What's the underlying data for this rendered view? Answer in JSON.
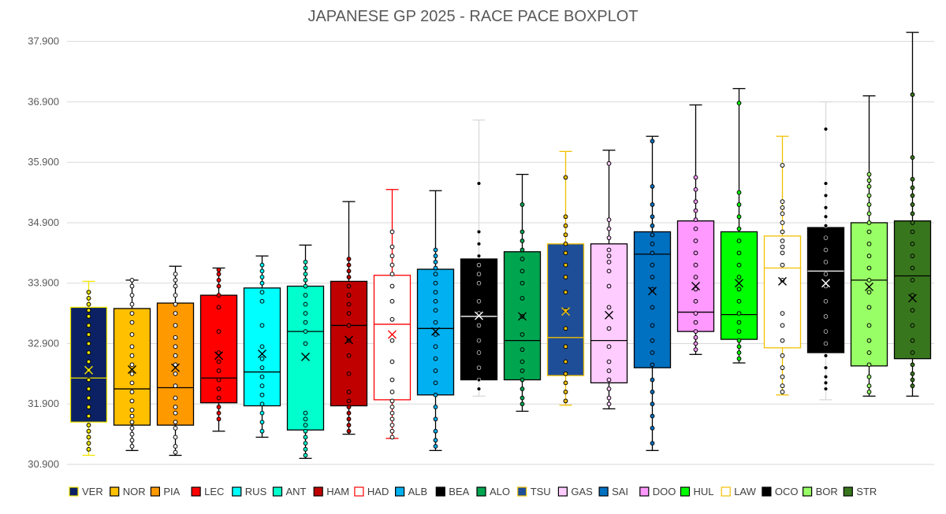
{
  "chart_data": {
    "type": "boxplot",
    "title": "JAPANESE GP 2025 - RACE PACE BOXPLOT",
    "xlabel": "",
    "ylabel": "",
    "ylim": [
      30.9,
      38.0
    ],
    "yticks": [
      "30.900",
      "31.900",
      "32.900",
      "33.900",
      "34.900",
      "35.900",
      "36.900",
      "37.900"
    ],
    "grid": true,
    "legend": "bottom",
    "series": [
      {
        "name": "VER",
        "fill": "#0b2163",
        "edge": "#f2e600",
        "marker": "#f2e600",
        "median_color": "#f2e600",
        "whisker_color": "#f2e600",
        "min": 31.05,
        "q1": 31.6,
        "median": 32.33,
        "q3": 33.5,
        "max": 33.93,
        "mean": 32.46,
        "points": [
          33.75,
          33.65,
          33.55,
          33.45,
          33.35,
          33.2,
          33.05,
          32.9,
          32.75,
          32.6,
          32.46,
          32.3,
          32.15,
          32.0,
          31.85,
          31.7,
          31.55,
          31.45,
          31.35,
          31.25,
          31.15
        ]
      },
      {
        "name": "NOR",
        "fill": "#ffc000",
        "edge": "#000000",
        "marker": "#ffffff",
        "median_color": "#000000",
        "whisker_color": "#000000",
        "min": 31.13,
        "q1": 31.55,
        "median": 32.15,
        "q3": 33.48,
        "max": 33.95,
        "mean": 32.47,
        "points": [
          33.95,
          33.85,
          33.7,
          33.55,
          33.4,
          33.25,
          33.05,
          32.85,
          32.7,
          32.55,
          32.4,
          32.25,
          32.1,
          31.95,
          31.8,
          31.7,
          31.6,
          31.5,
          31.4,
          31.3,
          31.2
        ]
      },
      {
        "name": "PIA",
        "fill": "#ff9900",
        "edge": "#000000",
        "marker": "#ffffff",
        "median_color": "#000000",
        "whisker_color": "#000000",
        "min": 31.05,
        "q1": 31.55,
        "median": 32.17,
        "q3": 33.57,
        "max": 34.18,
        "mean": 32.5,
        "points": [
          34.05,
          33.95,
          33.85,
          33.7,
          33.55,
          33.4,
          33.2,
          33.0,
          32.85,
          32.7,
          32.55,
          32.4,
          32.2,
          32.0,
          31.85,
          31.75,
          31.6,
          31.5,
          31.35,
          31.2,
          31.1
        ]
      },
      {
        "name": "LEC",
        "fill": "#ff0000",
        "edge": "#000000",
        "marker": "#ff0000",
        "median_color": "#000000",
        "whisker_color": "#000000",
        "min": 31.45,
        "q1": 31.92,
        "median": 32.33,
        "q3": 33.7,
        "max": 34.15,
        "mean": 32.7,
        "points": [
          34.12,
          34.05,
          33.95,
          33.85,
          33.7,
          33.5,
          33.1,
          32.75,
          32.6,
          32.45,
          32.3,
          32.15,
          32.0,
          31.85,
          31.75,
          31.65
        ]
      },
      {
        "name": "RUS",
        "fill": "#00ffff",
        "edge": "#000000",
        "marker": "#00ffff",
        "median_color": "#000000",
        "whisker_color": "#000000",
        "min": 31.35,
        "q1": 31.87,
        "median": 32.43,
        "q3": 33.82,
        "max": 34.35,
        "mean": 32.73,
        "points": [
          34.2,
          34.1,
          34.0,
          33.9,
          33.75,
          33.6,
          33.2,
          32.85,
          32.65,
          32.5,
          32.35,
          32.2,
          32.05,
          31.9,
          31.75,
          31.6,
          31.45
        ]
      },
      {
        "name": "ANT",
        "fill": "#00ffcc",
        "edge": "#000000",
        "marker": "#00ffcc",
        "median_color": "#000000",
        "whisker_color": "#000000",
        "min": 31.0,
        "q1": 31.47,
        "median": 33.1,
        "q3": 33.85,
        "max": 34.53,
        "mean": 32.68,
        "points": [
          34.25,
          34.15,
          34.05,
          33.95,
          33.85,
          33.7,
          33.55,
          33.4,
          33.25,
          33.1,
          32.9,
          31.75,
          31.65,
          31.55,
          31.45,
          31.35,
          31.25,
          31.15,
          31.05
        ]
      },
      {
        "name": "HAM",
        "fill": "#c00000",
        "edge": "#000000",
        "marker": "#c00000",
        "median_color": "#000000",
        "whisker_color": "#000000",
        "min": 31.4,
        "q1": 31.87,
        "median": 33.2,
        "q3": 33.93,
        "max": 35.25,
        "mean": 32.96,
        "points": [
          34.3,
          34.2,
          34.1,
          34.0,
          33.85,
          33.7,
          33.55,
          33.4,
          33.2,
          32.95,
          32.7,
          32.4,
          32.1,
          31.95,
          31.85,
          31.75,
          31.65,
          31.55,
          31.45
        ]
      },
      {
        "name": "HAD",
        "fill": "#ffffff",
        "edge": "#ff0000",
        "marker": "#ffffff",
        "median_color": "#ff0000",
        "whisker_color": "#ff0000",
        "min": 31.33,
        "q1": 31.97,
        "median": 33.22,
        "q3": 34.03,
        "max": 35.45,
        "mean": 33.05,
        "points": [
          34.75,
          34.5,
          34.35,
          34.2,
          34.05,
          33.85,
          33.6,
          33.3,
          32.95,
          32.6,
          32.3,
          32.1,
          31.95,
          31.85,
          31.75,
          31.65,
          31.55,
          31.45,
          31.35
        ]
      },
      {
        "name": "ALB",
        "fill": "#00b0f0",
        "edge": "#000000",
        "marker": "#00b0f0",
        "median_color": "#000000",
        "whisker_color": "#000000",
        "min": 31.13,
        "q1": 32.05,
        "median": 33.15,
        "q3": 34.13,
        "max": 35.43,
        "mean": 33.1,
        "points": [
          34.45,
          34.35,
          34.25,
          34.15,
          34.05,
          33.9,
          33.75,
          33.6,
          33.45,
          33.25,
          33.05,
          32.85,
          32.65,
          32.45,
          32.25,
          32.05,
          31.85,
          31.65,
          31.45,
          31.3,
          31.2
        ]
      },
      {
        "name": "BEA",
        "fill": "#000000",
        "edge": "#000000",
        "marker": "#000000",
        "median_color": "#ffffff",
        "whisker_color": "#d9d9d9",
        "min": 32.03,
        "q1": 32.3,
        "median": 33.35,
        "q3": 34.3,
        "max": 36.6,
        "mean": 33.36,
        "points": [
          35.55,
          34.75,
          34.55,
          34.35,
          34.2,
          34.05,
          33.9,
          33.6,
          33.4,
          33.2,
          32.95,
          32.75,
          32.5,
          32.3,
          32.15
        ]
      },
      {
        "name": "ALO",
        "fill": "#00a550",
        "edge": "#000000",
        "marker": "#00a550",
        "median_color": "#000000",
        "whisker_color": "#000000",
        "min": 31.78,
        "q1": 32.3,
        "median": 32.95,
        "q3": 34.42,
        "max": 35.7,
        "mean": 33.35,
        "points": [
          35.2,
          34.75,
          34.6,
          34.45,
          34.3,
          34.1,
          33.9,
          33.65,
          33.35,
          33.05,
          32.8,
          32.6,
          32.45,
          32.3,
          32.15,
          32.0,
          31.9
        ]
      },
      {
        "name": "TSU",
        "fill": "#1f4e99",
        "edge": "#f2c000",
        "marker": "#f2c000",
        "median_color": "#f2c000",
        "whisker_color": "#f2c000",
        "min": 31.88,
        "q1": 32.37,
        "median": 33.0,
        "q3": 34.55,
        "max": 36.08,
        "mean": 33.43,
        "points": [
          35.65,
          35.0,
          34.85,
          34.7,
          34.55,
          34.4,
          34.2,
          34.0,
          33.75,
          33.45,
          33.15,
          32.85,
          32.6,
          32.4,
          32.25,
          32.1,
          31.95
        ]
      },
      {
        "name": "GAS",
        "fill": "#ffccff",
        "edge": "#000000",
        "marker": "#ffccff",
        "median_color": "#000000",
        "whisker_color": "#000000",
        "min": 31.82,
        "q1": 32.25,
        "median": 32.95,
        "q3": 34.55,
        "max": 36.1,
        "mean": 33.37,
        "points": [
          35.88,
          34.95,
          34.8,
          34.65,
          34.45,
          34.35,
          34.25,
          34.1,
          33.85,
          33.5,
          33.15,
          32.85,
          32.6,
          32.45,
          32.3,
          32.15,
          32.0,
          31.9
        ]
      },
      {
        "name": "SAI",
        "fill": "#0070c0",
        "edge": "#000000",
        "marker": "#0070c0",
        "median_color": "#000000",
        "whisker_color": "#000000",
        "min": 31.13,
        "q1": 32.5,
        "median": 34.38,
        "q3": 34.75,
        "max": 36.33,
        "mean": 33.77,
        "points": [
          36.25,
          35.5,
          35.2,
          35.0,
          34.85,
          34.7,
          34.55,
          34.4,
          34.2,
          34.0,
          33.8,
          33.5,
          33.2,
          32.95,
          32.75,
          32.55,
          32.3,
          32.1,
          31.9,
          31.7,
          31.5,
          31.25
        ]
      },
      {
        "name": "DOO",
        "fill": "#ff99ff",
        "edge": "#000000",
        "marker": "#ff99ff",
        "median_color": "#000000",
        "whisker_color": "#000000",
        "min": 32.72,
        "q1": 33.1,
        "median": 33.42,
        "q3": 34.93,
        "max": 36.85,
        "mean": 33.85,
        "points": [
          35.65,
          35.45,
          35.25,
          35.1,
          34.95,
          34.8,
          34.6,
          34.4,
          34.2,
          34.0,
          33.8,
          33.6,
          33.4,
          33.25,
          33.1,
          33.0,
          32.9,
          32.8
        ]
      },
      {
        "name": "HUL",
        "fill": "#00ff00",
        "edge": "#000000",
        "marker": "#00ff00",
        "median_color": "#000000",
        "whisker_color": "#000000",
        "min": 32.58,
        "q1": 32.97,
        "median": 33.38,
        "q3": 34.75,
        "max": 37.12,
        "mean": 33.9,
        "points": [
          36.88,
          35.4,
          35.2,
          35.0,
          34.8,
          34.6,
          34.4,
          34.2,
          34.0,
          33.8,
          33.6,
          33.4,
          33.25,
          33.1,
          32.95,
          32.85,
          32.75,
          32.65
        ]
      },
      {
        "name": "LAW",
        "fill": "#ffffff",
        "edge": "#f2c000",
        "marker": "#ffffff",
        "median_color": "#f2c000",
        "whisker_color": "#f2c000",
        "min": 32.05,
        "q1": 32.83,
        "median": 34.15,
        "q3": 34.68,
        "max": 36.33,
        "mean": 33.93,
        "points": [
          35.85,
          35.25,
          35.15,
          35.05,
          34.9,
          34.75,
          34.6,
          34.5,
          34.4,
          34.2,
          33.95,
          33.4,
          33.2,
          32.95,
          32.7,
          32.5,
          32.35,
          32.2,
          32.1
        ]
      },
      {
        "name": "OCO",
        "fill": "#000000",
        "edge": "#000000",
        "marker": "#000000",
        "median_color": "#ffffff",
        "whisker_color": "#d9d9d9",
        "min": 31.97,
        "q1": 32.75,
        "median": 34.1,
        "q3": 34.82,
        "max": 36.9,
        "mean": 33.9,
        "points": [
          36.45,
          35.55,
          35.35,
          35.15,
          35.0,
          34.85,
          34.65,
          34.45,
          34.25,
          34.05,
          33.85,
          33.6,
          33.35,
          33.1,
          32.9,
          32.7,
          32.5,
          32.35,
          32.25,
          32.15
        ]
      },
      {
        "name": "BOR",
        "fill": "#99ff66",
        "edge": "#000000",
        "marker": "#99ff66",
        "median_color": "#000000",
        "whisker_color": "#000000",
        "min": 32.03,
        "q1": 32.53,
        "median": 33.95,
        "q3": 34.9,
        "max": 37.0,
        "mean": 33.84,
        "points": [
          35.7,
          35.6,
          35.5,
          35.35,
          35.2,
          35.05,
          34.9,
          34.75,
          34.55,
          34.35,
          34.15,
          33.95,
          33.75,
          33.5,
          33.2,
          32.95,
          32.75,
          32.55,
          32.35,
          32.2,
          32.1
        ]
      },
      {
        "name": "STR",
        "fill": "#38761d",
        "edge": "#000000",
        "marker": "#38761d",
        "median_color": "#000000",
        "whisker_color": "#000000",
        "min": 32.03,
        "q1": 32.65,
        "median": 34.02,
        "q3": 34.93,
        "max": 38.05,
        "mean": 33.65,
        "points": [
          37.02,
          35.98,
          35.62,
          35.48,
          35.35,
          35.2,
          35.05,
          34.9,
          34.75,
          34.55,
          34.35,
          34.15,
          33.95,
          33.7,
          33.45,
          33.2,
          32.95,
          32.75,
          32.55,
          32.4,
          32.3,
          32.2
        ]
      }
    ]
  }
}
